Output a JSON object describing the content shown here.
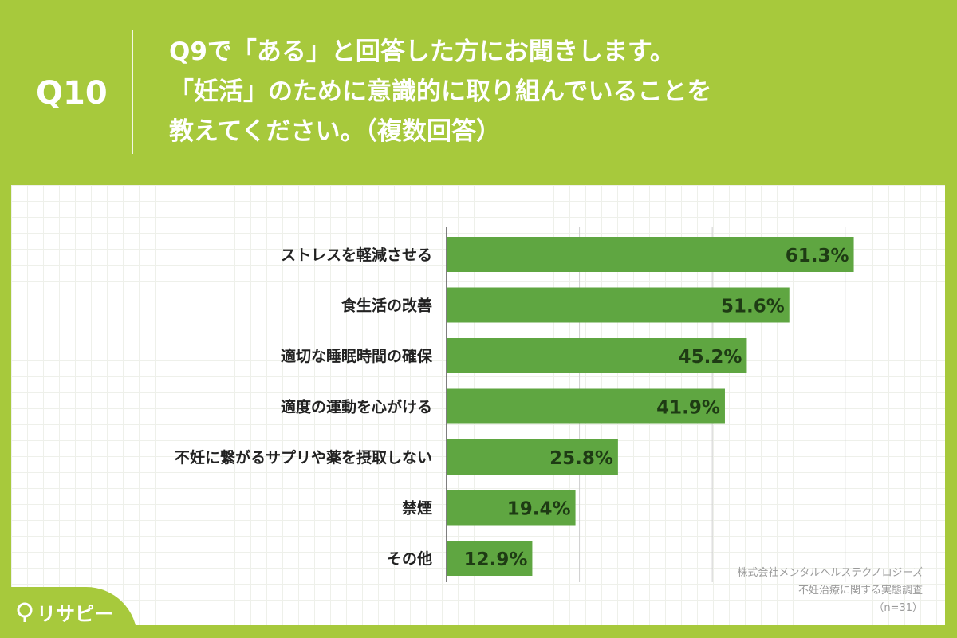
{
  "header": {
    "q_number": "Q10",
    "question_lines": [
      "Q9で「ある」と回答した方にお聞きします。",
      "「妊活」のために意識的に取り組んでいることを",
      "教えてください。（複数回答）"
    ]
  },
  "credit": {
    "company": "株式会社メンタルヘルステクノロジーズ",
    "survey": "不妊治療に関する実態調査",
    "sample": "（n=31）"
  },
  "logo": {
    "text": "リサピー",
    "icon": "lightbulb-icon"
  },
  "colors": {
    "background": "#a7c93c",
    "bar": "#5fa641",
    "bar_label": "#1e3b14",
    "category_label": "#222222"
  },
  "chart_data": {
    "type": "bar",
    "orientation": "horizontal",
    "categories": [
      "ストレスを軽減させる",
      "食生活の改善",
      "適切な睡眠時間の確保",
      "適度の運動を心がける",
      "不妊に繋がるサプリや薬を摂取しない",
      "禁煙",
      "その他"
    ],
    "values": [
      61.3,
      51.6,
      45.2,
      41.9,
      25.8,
      19.4,
      12.9
    ],
    "data_labels": [
      "61.3%",
      "51.6%",
      "45.2%",
      "41.9%",
      "25.8%",
      "19.4%",
      "12.9%"
    ],
    "xlim": [
      0,
      70
    ],
    "grid": true,
    "legend": "none"
  }
}
